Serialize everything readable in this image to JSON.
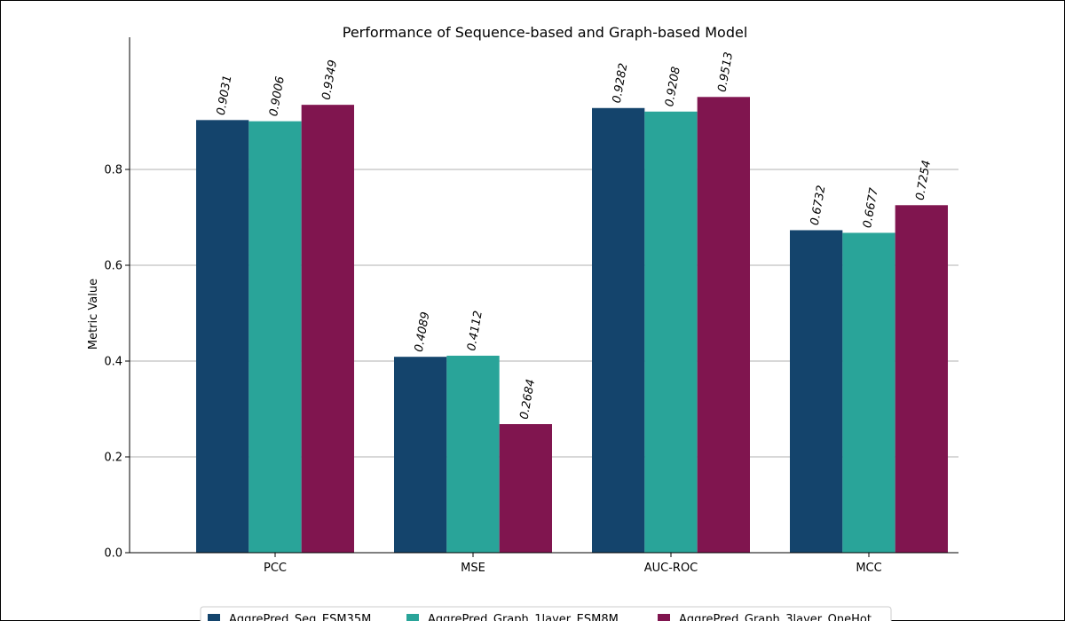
{
  "chart_data": {
    "type": "bar",
    "title": "Performance of Sequence-based and Graph-based Model",
    "xlabel": "",
    "ylabel": "Metric Value",
    "ylim": [
      0,
      1.0
    ],
    "yticks": [
      "0.0",
      "0.2",
      "0.4",
      "0.6",
      "0.8"
    ],
    "grid": "horizontal",
    "legend_position": "bottom-center",
    "categories": [
      "PCC",
      "MSE",
      "AUC-ROC",
      "MCC"
    ],
    "series": [
      {
        "name": "AggrePred_Seq_ESM35M",
        "color": "#14446c",
        "values": [
          0.9031,
          0.4089,
          0.9282,
          0.6732
        ],
        "labels": [
          "0.9031",
          "0.4089",
          "0.9282",
          "0.6732"
        ]
      },
      {
        "name": "AggrePred_Graph_1layer_ESM8M",
        "color": "#29a499",
        "values": [
          0.9006,
          0.4112,
          0.9208,
          0.6677
        ],
        "labels": [
          "0.9006",
          "0.4112",
          "0.9208",
          "0.6677"
        ]
      },
      {
        "name": "AggrePred_Graph_3layer_OneHot",
        "color": "#80154f",
        "values": [
          0.9349,
          0.2684,
          0.9513,
          0.7254
        ],
        "labels": [
          "0.9349",
          "0.2684",
          "0.9513",
          "0.7254"
        ]
      }
    ]
  }
}
